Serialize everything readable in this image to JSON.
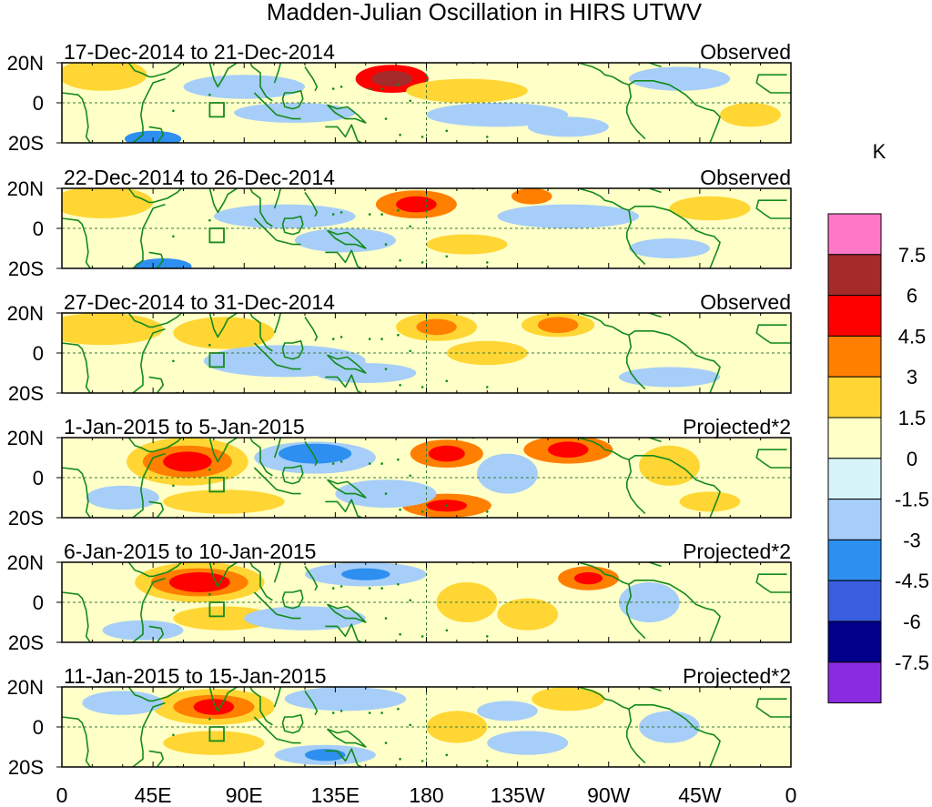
{
  "chart_data": {
    "type": "heatmap",
    "title": "Madden-Julian Oscillation in HIRS UTWV",
    "variable": "HIRS UTWV anomaly",
    "x_ticks": [
      "0",
      "45E",
      "90E",
      "135E",
      "180",
      "135W",
      "90W",
      "45W",
      "0"
    ],
    "x_range_deg": [
      0,
      360
    ],
    "y_ticks": [
      "20N",
      "0",
      "20S"
    ],
    "y_range_deg": [
      -20,
      20
    ],
    "colorbar": {
      "units": "K",
      "tick_labels": [
        "7.5",
        "6",
        "4.5",
        "3",
        "1.5",
        "0",
        "-1.5",
        "-3",
        "-4.5",
        "-6",
        "-7.5"
      ],
      "bins": [
        {
          "range": [
            7.5,
            null
          ],
          "color": "#ff77c6"
        },
        {
          "range": [
            6,
            7.5
          ],
          "color": "#a52a2a"
        },
        {
          "range": [
            4.5,
            6
          ],
          "color": "#ff0000"
        },
        {
          "range": [
            3,
            4.5
          ],
          "color": "#ff7f00"
        },
        {
          "range": [
            1.5,
            3
          ],
          "color": "#ffd633"
        },
        {
          "range": [
            0,
            1.5
          ],
          "color": "#ffffc8"
        },
        {
          "range": [
            -1.5,
            0
          ],
          "color": "#d8f4fb"
        },
        {
          "range": [
            -3,
            -1.5
          ],
          "color": "#a6cef8"
        },
        {
          "range": [
            -4.5,
            -3
          ],
          "color": "#2d8fef"
        },
        {
          "range": [
            -6,
            -4.5
          ],
          "color": "#3a5ee0"
        },
        {
          "range": [
            -7.5,
            -6
          ],
          "color": "#00008b"
        },
        {
          "range": [
            null,
            -7.5
          ],
          "color": "#8a2be2"
        }
      ]
    },
    "panels": [
      {
        "period": "17-Dec-2014 to 21-Dec-2014",
        "label": "Observed",
        "features": [
          {
            "lon": 163,
            "lat": 12,
            "rx": 18,
            "ry": 7,
            "value": 5
          },
          {
            "lon": 163,
            "lat": 12,
            "rx": 10,
            "ry": 4,
            "value": 6
          },
          {
            "lon": 20,
            "lat": 14,
            "rx": 22,
            "ry": 8,
            "value": 2
          },
          {
            "lon": 200,
            "lat": 6,
            "rx": 30,
            "ry": 6,
            "value": 1.8
          },
          {
            "lon": 45,
            "lat": -18,
            "rx": 14,
            "ry": 4,
            "value": -4
          },
          {
            "lon": 90,
            "lat": 8,
            "rx": 30,
            "ry": 6,
            "value": -2
          },
          {
            "lon": 115,
            "lat": -5,
            "rx": 30,
            "ry": 5,
            "value": -2
          },
          {
            "lon": 215,
            "lat": -6,
            "rx": 35,
            "ry": 6,
            "value": -2
          },
          {
            "lon": 305,
            "lat": 12,
            "rx": 25,
            "ry": 6,
            "value": -2
          },
          {
            "lon": 250,
            "lat": -12,
            "rx": 20,
            "ry": 5,
            "value": -2
          },
          {
            "lon": 340,
            "lat": -6,
            "rx": 15,
            "ry": 6,
            "value": 1.8
          }
        ]
      },
      {
        "period": "22-Dec-2014 to 26-Dec-2014",
        "label": "Observed",
        "features": [
          {
            "lon": 175,
            "lat": 12,
            "rx": 20,
            "ry": 7,
            "value": 4
          },
          {
            "lon": 175,
            "lat": 12,
            "rx": 10,
            "ry": 4,
            "value": 5
          },
          {
            "lon": 232,
            "lat": 16,
            "rx": 10,
            "ry": 4,
            "value": 4
          },
          {
            "lon": 20,
            "lat": 13,
            "rx": 25,
            "ry": 8,
            "value": 2
          },
          {
            "lon": 50,
            "lat": -19,
            "rx": 14,
            "ry": 4,
            "value": -4
          },
          {
            "lon": 110,
            "lat": 6,
            "rx": 35,
            "ry": 6,
            "value": -2
          },
          {
            "lon": 140,
            "lat": -6,
            "rx": 25,
            "ry": 6,
            "value": -2
          },
          {
            "lon": 250,
            "lat": 6,
            "rx": 35,
            "ry": 6,
            "value": -2
          },
          {
            "lon": 200,
            "lat": -8,
            "rx": 20,
            "ry": 5,
            "value": 1.8
          },
          {
            "lon": 320,
            "lat": 10,
            "rx": 20,
            "ry": 6,
            "value": 1.8
          },
          {
            "lon": 300,
            "lat": -10,
            "rx": 20,
            "ry": 5,
            "value": -2
          }
        ]
      },
      {
        "period": "27-Dec-2014 to 31-Dec-2014",
        "label": "Observed",
        "features": [
          {
            "lon": 185,
            "lat": 13,
            "rx": 20,
            "ry": 7,
            "value": 2
          },
          {
            "lon": 185,
            "lat": 13,
            "rx": 10,
            "ry": 4,
            "value": 3.5
          },
          {
            "lon": 245,
            "lat": 14,
            "rx": 18,
            "ry": 6,
            "value": 2
          },
          {
            "lon": 245,
            "lat": 14,
            "rx": 10,
            "ry": 4,
            "value": 3.5
          },
          {
            "lon": 20,
            "lat": 12,
            "rx": 30,
            "ry": 8,
            "value": 2
          },
          {
            "lon": 80,
            "lat": 10,
            "rx": 25,
            "ry": 8,
            "value": 2
          },
          {
            "lon": 110,
            "lat": -4,
            "rx": 40,
            "ry": 8,
            "value": -2
          },
          {
            "lon": 150,
            "lat": -10,
            "rx": 25,
            "ry": 5,
            "value": -2
          },
          {
            "lon": 210,
            "lat": 0,
            "rx": 20,
            "ry": 6,
            "value": 1.8
          },
          {
            "lon": 300,
            "lat": -12,
            "rx": 25,
            "ry": 5,
            "value": -2
          }
        ]
      },
      {
        "period": "1-Jan-2015 to 5-Jan-2015",
        "label": "Projected*2",
        "features": [
          {
            "lon": 62,
            "lat": 8,
            "rx": 30,
            "ry": 12,
            "value": 2
          },
          {
            "lon": 62,
            "lat": 8,
            "rx": 22,
            "ry": 8,
            "value": 3.5
          },
          {
            "lon": 62,
            "lat": 8,
            "rx": 12,
            "ry": 5,
            "value": 5
          },
          {
            "lon": 80,
            "lat": -12,
            "rx": 30,
            "ry": 6,
            "value": 2
          },
          {
            "lon": 190,
            "lat": 12,
            "rx": 18,
            "ry": 7,
            "value": 3.5
          },
          {
            "lon": 190,
            "lat": 12,
            "rx": 9,
            "ry": 4,
            "value": 5
          },
          {
            "lon": 190,
            "lat": -14,
            "rx": 22,
            "ry": 6,
            "value": 3.5
          },
          {
            "lon": 190,
            "lat": -14,
            "rx": 10,
            "ry": 3,
            "value": 5
          },
          {
            "lon": 250,
            "lat": 14,
            "rx": 22,
            "ry": 7,
            "value": 3.5
          },
          {
            "lon": 250,
            "lat": 14,
            "rx": 10,
            "ry": 4,
            "value": 5.5
          },
          {
            "lon": 300,
            "lat": 6,
            "rx": 15,
            "ry": 10,
            "value": 2
          },
          {
            "lon": 125,
            "lat": 10,
            "rx": 30,
            "ry": 8,
            "value": -2
          },
          {
            "lon": 125,
            "lat": 12,
            "rx": 18,
            "ry": 5,
            "value": -4
          },
          {
            "lon": 160,
            "lat": -8,
            "rx": 25,
            "ry": 7,
            "value": -2
          },
          {
            "lon": 220,
            "lat": 2,
            "rx": 15,
            "ry": 10,
            "value": -2
          },
          {
            "lon": 30,
            "lat": -10,
            "rx": 18,
            "ry": 6,
            "value": -2
          },
          {
            "lon": 320,
            "lat": -12,
            "rx": 15,
            "ry": 5,
            "value": 2
          }
        ]
      },
      {
        "period": "6-Jan-2015 to 10-Jan-2015",
        "label": "Projected*2",
        "features": [
          {
            "lon": 68,
            "lat": 10,
            "rx": 32,
            "ry": 10,
            "value": 2
          },
          {
            "lon": 68,
            "lat": 10,
            "rx": 24,
            "ry": 7,
            "value": 3.5
          },
          {
            "lon": 68,
            "lat": 10,
            "rx": 15,
            "ry": 5,
            "value": 5
          },
          {
            "lon": 80,
            "lat": -8,
            "rx": 25,
            "ry": 6,
            "value": 2
          },
          {
            "lon": 150,
            "lat": 14,
            "rx": 30,
            "ry": 6,
            "value": -2
          },
          {
            "lon": 150,
            "lat": 14,
            "rx": 12,
            "ry": 3,
            "value": -4
          },
          {
            "lon": 260,
            "lat": 12,
            "rx": 15,
            "ry": 6,
            "value": 3.5
          },
          {
            "lon": 260,
            "lat": 12,
            "rx": 7,
            "ry": 3,
            "value": 5
          },
          {
            "lon": 200,
            "lat": 0,
            "rx": 15,
            "ry": 10,
            "value": 1.8
          },
          {
            "lon": 230,
            "lat": -6,
            "rx": 15,
            "ry": 8,
            "value": 1.8
          },
          {
            "lon": 120,
            "lat": -8,
            "rx": 30,
            "ry": 6,
            "value": -2
          },
          {
            "lon": 290,
            "lat": 0,
            "rx": 15,
            "ry": 10,
            "value": -2
          },
          {
            "lon": 40,
            "lat": -14,
            "rx": 20,
            "ry": 5,
            "value": -2
          }
        ]
      },
      {
        "period": "11-Jan-2015 to 15-Jan-2015",
        "label": "Projected*2",
        "features": [
          {
            "lon": 75,
            "lat": 10,
            "rx": 30,
            "ry": 9,
            "value": 2
          },
          {
            "lon": 75,
            "lat": 10,
            "rx": 20,
            "ry": 6,
            "value": 3.5
          },
          {
            "lon": 75,
            "lat": 10,
            "rx": 10,
            "ry": 4,
            "value": 5
          },
          {
            "lon": 75,
            "lat": -8,
            "rx": 25,
            "ry": 6,
            "value": 1.8
          },
          {
            "lon": 140,
            "lat": 14,
            "rx": 30,
            "ry": 6,
            "value": -2
          },
          {
            "lon": 130,
            "lat": -14,
            "rx": 25,
            "ry": 5,
            "value": -2
          },
          {
            "lon": 130,
            "lat": -14,
            "rx": 10,
            "ry": 3,
            "value": -4
          },
          {
            "lon": 30,
            "lat": 12,
            "rx": 20,
            "ry": 6,
            "value": -2
          },
          {
            "lon": 250,
            "lat": 14,
            "rx": 18,
            "ry": 6,
            "value": 2
          },
          {
            "lon": 195,
            "lat": 0,
            "rx": 15,
            "ry": 8,
            "value": 1.8
          },
          {
            "lon": 230,
            "lat": -8,
            "rx": 20,
            "ry": 6,
            "value": -2
          },
          {
            "lon": 300,
            "lat": 0,
            "rx": 15,
            "ry": 8,
            "value": -2
          },
          {
            "lon": 220,
            "lat": 8,
            "rx": 15,
            "ry": 5,
            "value": -2
          }
        ]
      }
    ]
  }
}
